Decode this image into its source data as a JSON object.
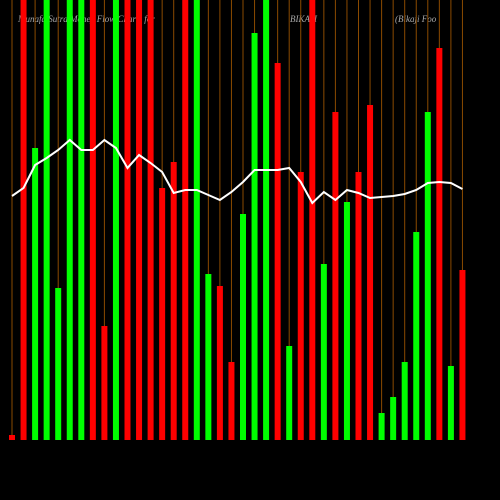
{
  "chart_data": {
    "type": "bar",
    "title_parts": [
      "Munafa Sutra Money Flow Charts for",
      "BIKAJI",
      "(Bikaji Foo"
    ],
    "values": [
      5,
      440,
      292,
      440,
      152,
      440,
      440,
      440,
      114,
      440,
      440,
      440,
      440,
      252,
      278,
      440,
      440,
      166,
      154,
      78,
      226,
      407,
      440,
      377,
      94,
      268,
      440,
      176,
      328,
      238,
      268,
      335,
      27,
      43,
      78,
      208,
      328,
      392,
      74,
      170
    ],
    "bar_colors": [
      "#ff0000",
      "#ff0000",
      "#00ff00",
      "#00ff00",
      "#00ff00",
      "#00ff00",
      "#00ff00",
      "#ff0000",
      "#ff0000",
      "#00ff00",
      "#ff0000",
      "#ff0000",
      "#ff0000",
      "#ff0000",
      "#ff0000",
      "#ff0000",
      "#00ff00",
      "#00ff00",
      "#ff0000",
      "#ff0000",
      "#00ff00",
      "#00ff00",
      "#00ff00",
      "#ff0000",
      "#00ff00",
      "#ff0000",
      "#ff0000",
      "#00ff00",
      "#ff0000",
      "#00ff00",
      "#ff0000",
      "#ff0000",
      "#00ff00",
      "#00ff00",
      "#00ff00",
      "#00ff00",
      "#00ff00",
      "#ff0000",
      "#00ff00",
      "#ff0000"
    ],
    "line_values": [
      244,
      252,
      275,
      282,
      290,
      300,
      290,
      290,
      300,
      292,
      272,
      285,
      277,
      268,
      247,
      250,
      250,
      245,
      240,
      248,
      258,
      270,
      270,
      270,
      272,
      258,
      237,
      248,
      240,
      250,
      247,
      242,
      243,
      244,
      246,
      250,
      257,
      258,
      257,
      251
    ],
    "line_color": "#ffffff",
    "grid_color": "#8a4a00",
    "ylim": [
      0,
      440
    ]
  }
}
